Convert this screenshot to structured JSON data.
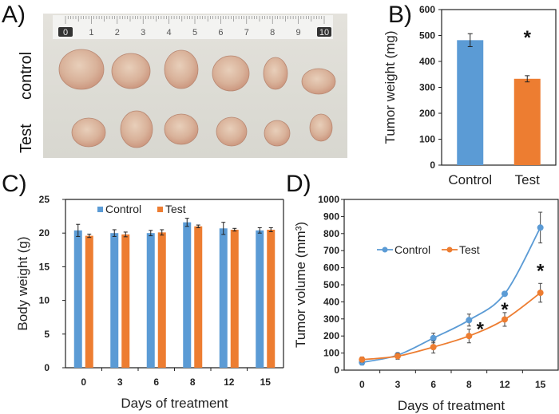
{
  "figure": {
    "panel_labels": [
      "A)",
      "B)",
      "C)",
      "D)"
    ],
    "colors": {
      "control": "#5b9bd5",
      "test": "#ed7d31",
      "axis": "#222222"
    }
  },
  "photo": {
    "row_labels": [
      "control",
      "Test"
    ],
    "ruler_labels": [
      "0",
      "1",
      "2",
      "3",
      "4",
      "5",
      "6",
      "7",
      "8",
      "9",
      "10"
    ],
    "tumor_count_per_row": 6
  },
  "chart_data": [
    {
      "id": "B",
      "type": "bar",
      "title": "",
      "categories": [
        "Control",
        "Test"
      ],
      "values": [
        482,
        333
      ],
      "errors": [
        25,
        12
      ],
      "colors": [
        "#5b9bd5",
        "#ed7d31"
      ],
      "ylabel": "Tumor weight (mg)",
      "xlabel": "",
      "ylim": [
        0,
        600
      ],
      "yticks": [
        0,
        100,
        200,
        300,
        400,
        500,
        600
      ],
      "annotations": [
        {
          "text": "*",
          "category": "Test",
          "y": 505
        }
      ],
      "grid": false
    },
    {
      "id": "C",
      "type": "bar",
      "title": "",
      "categories": [
        "0",
        "3",
        "6",
        "8",
        "12",
        "15"
      ],
      "series": [
        {
          "name": "Control",
          "values": [
            20.4,
            20.0,
            20.0,
            21.6,
            20.7,
            20.4
          ],
          "errors": [
            0.9,
            0.5,
            0.4,
            0.6,
            0.9,
            0.4
          ]
        },
        {
          "name": "Test",
          "values": [
            19.6,
            19.8,
            20.1,
            21.0,
            20.5,
            20.5
          ],
          "errors": [
            0.25,
            0.35,
            0.4,
            0.2,
            0.2,
            0.3
          ]
        }
      ],
      "xlabel": "Days of treatment",
      "ylabel": "Body weight (g)",
      "ylim": [
        0,
        25
      ],
      "yticks": [
        0,
        5,
        10,
        15,
        20,
        25
      ],
      "legend": {
        "entries": [
          "Control",
          "Test"
        ],
        "placement": "top-left"
      },
      "grid": false
    },
    {
      "id": "D",
      "type": "line",
      "title": "",
      "x": [
        "0",
        "3",
        "6",
        "8",
        "12",
        "15"
      ],
      "series": [
        {
          "name": "Control",
          "values": [
            45,
            88,
            188,
            293,
            447,
            835
          ],
          "errors": [
            15,
            12,
            28,
            35,
            8,
            90
          ]
        },
        {
          "name": "Test",
          "values": [
            62,
            82,
            135,
            200,
            297,
            453
          ],
          "errors": [
            15,
            18,
            35,
            40,
            40,
            55
          ]
        }
      ],
      "xlabel": "Days of treatment",
      "ylabel": "Tumor volume (mm³)",
      "ylim": [
        0,
        1000
      ],
      "yticks": [
        0,
        100,
        200,
        300,
        400,
        500,
        600,
        700,
        800,
        900,
        1000
      ],
      "legend": {
        "entries": [
          "Control",
          "Test"
        ],
        "placement": "center-left"
      },
      "annotations": [
        {
          "text": "*",
          "x_index": 3,
          "y": 260
        },
        {
          "text": "*",
          "x_index": 4,
          "y": 375
        },
        {
          "text": "*",
          "x_index": 5,
          "y": 600
        }
      ],
      "grid": false
    }
  ]
}
